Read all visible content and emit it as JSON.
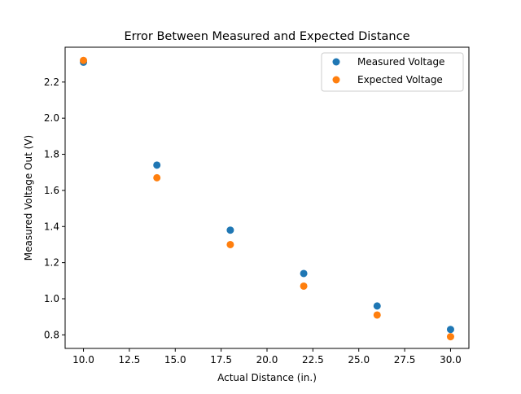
{
  "chart_data": {
    "type": "scatter",
    "title": "Error Between Measured and Expected Distance",
    "xlabel": "Actual Distance (in.)",
    "ylabel": "Measured Voltage Out (V)",
    "xlim": [
      9.0,
      31.0
    ],
    "ylim": [
      0.725,
      2.393
    ],
    "xticks": [
      10.0,
      12.5,
      15.0,
      17.5,
      20.0,
      22.5,
      25.0,
      27.5,
      30.0
    ],
    "xtick_labels": [
      "10.0",
      "12.5",
      "15.0",
      "17.5",
      "20.0",
      "22.5",
      "25.0",
      "27.5",
      "30.0"
    ],
    "yticks": [
      0.8,
      1.0,
      1.2,
      1.4,
      1.6,
      1.8,
      2.0,
      2.2
    ],
    "ytick_labels": [
      "0.8",
      "1.0",
      "1.2",
      "1.4",
      "1.6",
      "1.8",
      "2.0",
      "2.2"
    ],
    "grid": false,
    "legend_position": "top-right",
    "x": [
      10,
      14,
      18,
      22,
      26,
      30
    ],
    "series": [
      {
        "name": "Measured Voltage",
        "color": "#1f77b4",
        "values": [
          2.31,
          1.74,
          1.38,
          1.14,
          0.96,
          0.83
        ]
      },
      {
        "name": "Expected Voltage",
        "color": "#ff7f0e",
        "values": [
          2.32,
          1.67,
          1.3,
          1.07,
          0.91,
          0.79
        ]
      }
    ]
  }
}
